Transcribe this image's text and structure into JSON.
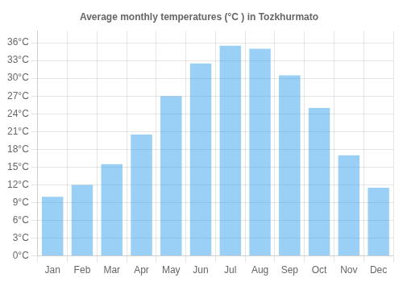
{
  "chart_data": {
    "type": "bar",
    "title": "Average monthly temperatures (°C ) in Tozkhurmato",
    "categories": [
      "Jan",
      "Feb",
      "Mar",
      "Apr",
      "May",
      "Jun",
      "Jul",
      "Aug",
      "Sep",
      "Oct",
      "Nov",
      "Dec"
    ],
    "values": [
      10,
      12,
      15.5,
      20.5,
      27,
      32.5,
      35.5,
      35,
      30.5,
      25,
      17,
      11.5
    ],
    "ylim": [
      0,
      38
    ],
    "yticks": [
      {
        "value": 0,
        "label": "0°C"
      },
      {
        "value": 3,
        "label": "3°C"
      },
      {
        "value": 6,
        "label": "6°C"
      },
      {
        "value": 9,
        "label": "9°C"
      },
      {
        "value": 12,
        "label": "12°C"
      },
      {
        "value": 15,
        "label": "15°C"
      },
      {
        "value": 18,
        "label": "18°C"
      },
      {
        "value": 21,
        "label": "21°C"
      },
      {
        "value": 24,
        "label": "24°C"
      },
      {
        "value": 27,
        "label": "27°C"
      },
      {
        "value": 30,
        "label": "30°C"
      },
      {
        "value": 33,
        "label": "33°C"
      },
      {
        "value": 36,
        "label": "36°C"
      }
    ],
    "grid": true
  }
}
